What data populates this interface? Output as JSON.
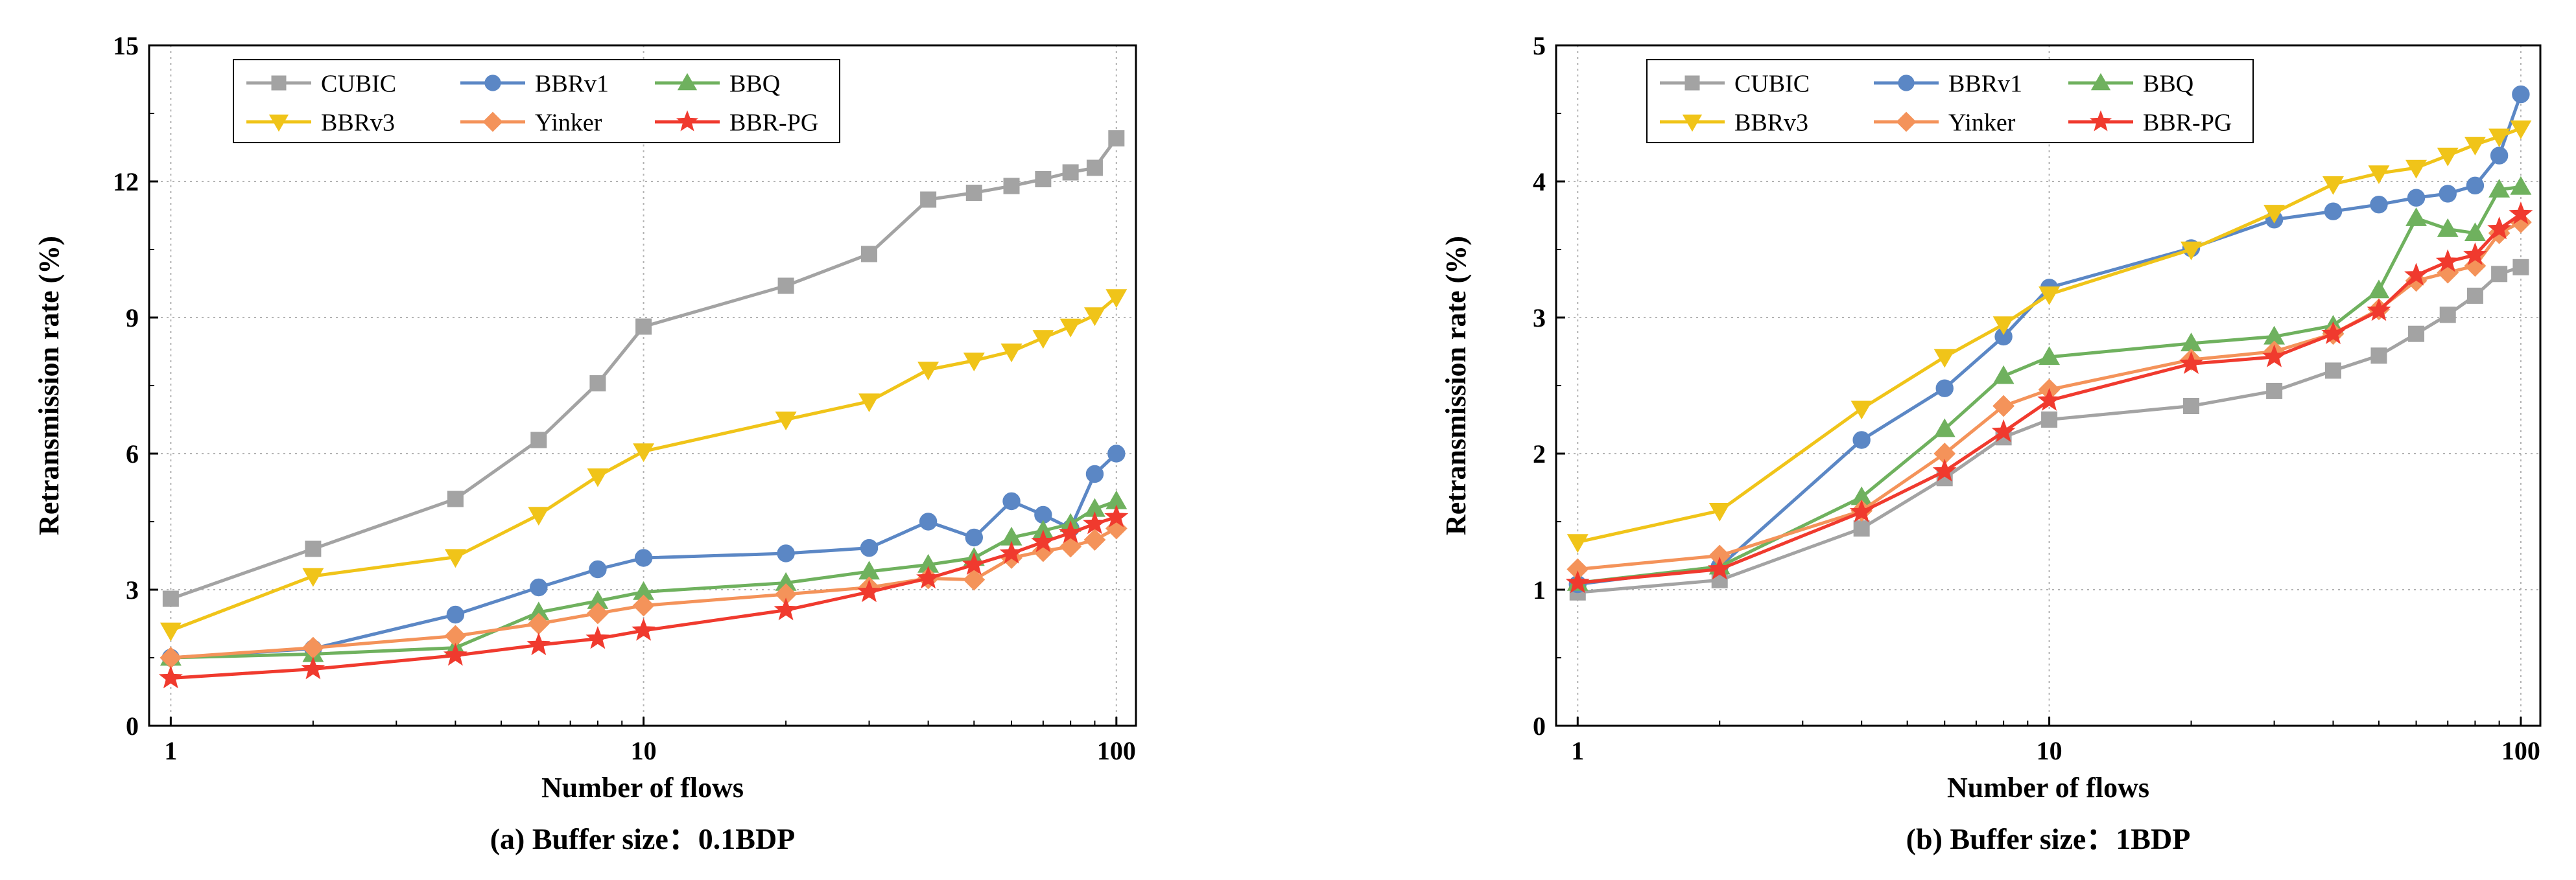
{
  "chart_data": [
    {
      "type": "line",
      "x_scale": "log",
      "caption": "(a) Buffer size：0.1BDP",
      "xlabel": "Number of flows",
      "ylabel": "Retransmission rate (%)",
      "xlim": [
        0.9,
        110
      ],
      "ylim": [
        0,
        15
      ],
      "x_ticks": [
        1,
        10,
        100
      ],
      "x_tick_labels": [
        "1",
        "10",
        "100"
      ],
      "y_ticks": [
        0,
        3,
        6,
        9,
        12,
        15
      ],
      "y_tick_labels": [
        "0",
        "3",
        "6",
        "9",
        "12",
        "15"
      ],
      "grid": true,
      "legend_position": "top-left",
      "series": [
        {
          "name": "CUBIC",
          "color": "#a3a3a3",
          "marker": "square",
          "x": [
            1,
            2,
            4,
            6,
            8,
            10,
            20,
            30,
            40,
            50,
            60,
            70,
            80,
            90,
            100
          ],
          "values": [
            2.8,
            3.9,
            5.0,
            6.3,
            7.55,
            8.8,
            9.7,
            10.4,
            11.6,
            11.75,
            11.9,
            12.05,
            12.2,
            12.3,
            12.95
          ]
        },
        {
          "name": "BBRv1",
          "color": "#5b87c5",
          "marker": "circle",
          "x": [
            1,
            2,
            4,
            6,
            8,
            10,
            20,
            30,
            40,
            50,
            60,
            70,
            80,
            90,
            100
          ],
          "values": [
            1.5,
            1.7,
            2.45,
            3.05,
            3.45,
            3.7,
            3.8,
            3.92,
            4.5,
            4.15,
            4.95,
            4.65,
            4.35,
            5.55,
            6.0
          ]
        },
        {
          "name": "BBQ",
          "color": "#6fb15e",
          "marker": "triangle-up",
          "x": [
            1,
            2,
            4,
            6,
            8,
            10,
            20,
            30,
            40,
            50,
            60,
            70,
            80,
            90,
            100
          ],
          "values": [
            1.5,
            1.58,
            1.72,
            2.5,
            2.75,
            2.95,
            3.15,
            3.4,
            3.55,
            3.7,
            4.15,
            4.3,
            4.45,
            4.78,
            4.95
          ]
        },
        {
          "name": "BBRv3",
          "color": "#f0c419",
          "marker": "triangle-down",
          "x": [
            1,
            2,
            4,
            6,
            8,
            10,
            20,
            30,
            40,
            50,
            60,
            70,
            80,
            90,
            100
          ],
          "values": [
            2.1,
            3.3,
            3.72,
            4.65,
            5.5,
            6.05,
            6.75,
            7.15,
            7.85,
            8.05,
            8.25,
            8.55,
            8.8,
            9.05,
            9.45
          ]
        },
        {
          "name": "Yinker",
          "color": "#f4935a",
          "marker": "diamond",
          "x": [
            1,
            2,
            4,
            6,
            8,
            10,
            20,
            30,
            40,
            50,
            60,
            70,
            80,
            90,
            100
          ],
          "values": [
            1.5,
            1.72,
            1.98,
            2.25,
            2.48,
            2.65,
            2.9,
            3.05,
            3.25,
            3.22,
            3.7,
            3.85,
            3.95,
            4.1,
            4.35
          ]
        },
        {
          "name": "BBR-PG",
          "color": "#f03a2e",
          "marker": "star",
          "x": [
            1,
            2,
            4,
            6,
            8,
            10,
            20,
            30,
            40,
            50,
            60,
            70,
            80,
            90,
            100
          ],
          "values": [
            1.05,
            1.25,
            1.55,
            1.78,
            1.92,
            2.1,
            2.55,
            2.95,
            3.25,
            3.55,
            3.8,
            4.05,
            4.25,
            4.45,
            4.6
          ]
        }
      ]
    },
    {
      "type": "line",
      "x_scale": "log",
      "caption": "(b) Buffer size：1BDP",
      "xlabel": "Number of flows",
      "ylabel": "Retransmission rate (%)",
      "xlim": [
        0.9,
        110
      ],
      "ylim": [
        0,
        5
      ],
      "x_ticks": [
        1,
        10,
        100
      ],
      "x_tick_labels": [
        "1",
        "10",
        "100"
      ],
      "y_ticks": [
        0,
        1,
        2,
        3,
        4,
        5
      ],
      "y_tick_labels": [
        "0",
        "1",
        "2",
        "3",
        "4",
        "5"
      ],
      "grid": true,
      "legend_position": "top-left",
      "series": [
        {
          "name": "CUBIC",
          "color": "#a3a3a3",
          "marker": "square",
          "x": [
            1,
            2,
            4,
            6,
            8,
            10,
            20,
            30,
            40,
            50,
            60,
            70,
            80,
            90,
            100
          ],
          "values": [
            0.98,
            1.07,
            1.45,
            1.82,
            2.12,
            2.25,
            2.35,
            2.46,
            2.61,
            2.72,
            2.88,
            3.02,
            3.16,
            3.32,
            3.37
          ]
        },
        {
          "name": "BBRv1",
          "color": "#5b87c5",
          "marker": "circle",
          "x": [
            1,
            2,
            4,
            6,
            8,
            10,
            20,
            30,
            40,
            50,
            60,
            70,
            80,
            90,
            100
          ],
          "values": [
            1.04,
            1.17,
            2.1,
            2.48,
            2.86,
            3.22,
            3.51,
            3.72,
            3.78,
            3.83,
            3.88,
            3.91,
            3.97,
            4.19,
            4.64
          ]
        },
        {
          "name": "BBQ",
          "color": "#6fb15e",
          "marker": "triangle-up",
          "x": [
            1,
            2,
            4,
            6,
            8,
            10,
            20,
            30,
            40,
            50,
            60,
            70,
            80,
            90,
            100
          ],
          "values": [
            1.05,
            1.17,
            1.68,
            2.18,
            2.57,
            2.71,
            2.81,
            2.86,
            2.94,
            3.2,
            3.73,
            3.65,
            3.62,
            3.94,
            3.96
          ]
        },
        {
          "name": "BBRv3",
          "color": "#f0c419",
          "marker": "triangle-down",
          "x": [
            1,
            2,
            4,
            6,
            8,
            10,
            20,
            30,
            40,
            50,
            60,
            70,
            80,
            90,
            100
          ],
          "values": [
            1.35,
            1.58,
            2.33,
            2.71,
            2.95,
            3.17,
            3.5,
            3.77,
            3.98,
            4.06,
            4.1,
            4.19,
            4.27,
            4.33,
            4.39
          ]
        },
        {
          "name": "Yinker",
          "color": "#f4935a",
          "marker": "diamond",
          "x": [
            1,
            2,
            4,
            6,
            8,
            10,
            20,
            30,
            40,
            50,
            60,
            70,
            80,
            90,
            100
          ],
          "values": [
            1.15,
            1.25,
            1.58,
            2.0,
            2.35,
            2.47,
            2.69,
            2.75,
            2.88,
            3.06,
            3.27,
            3.33,
            3.38,
            3.62,
            3.7
          ]
        },
        {
          "name": "BBR-PG",
          "color": "#f03a2e",
          "marker": "star",
          "x": [
            1,
            2,
            4,
            6,
            8,
            10,
            20,
            30,
            40,
            50,
            60,
            70,
            80,
            90,
            100
          ],
          "values": [
            1.05,
            1.15,
            1.57,
            1.87,
            2.16,
            2.39,
            2.66,
            2.71,
            2.88,
            3.05,
            3.31,
            3.41,
            3.46,
            3.65,
            3.76
          ]
        }
      ]
    }
  ]
}
